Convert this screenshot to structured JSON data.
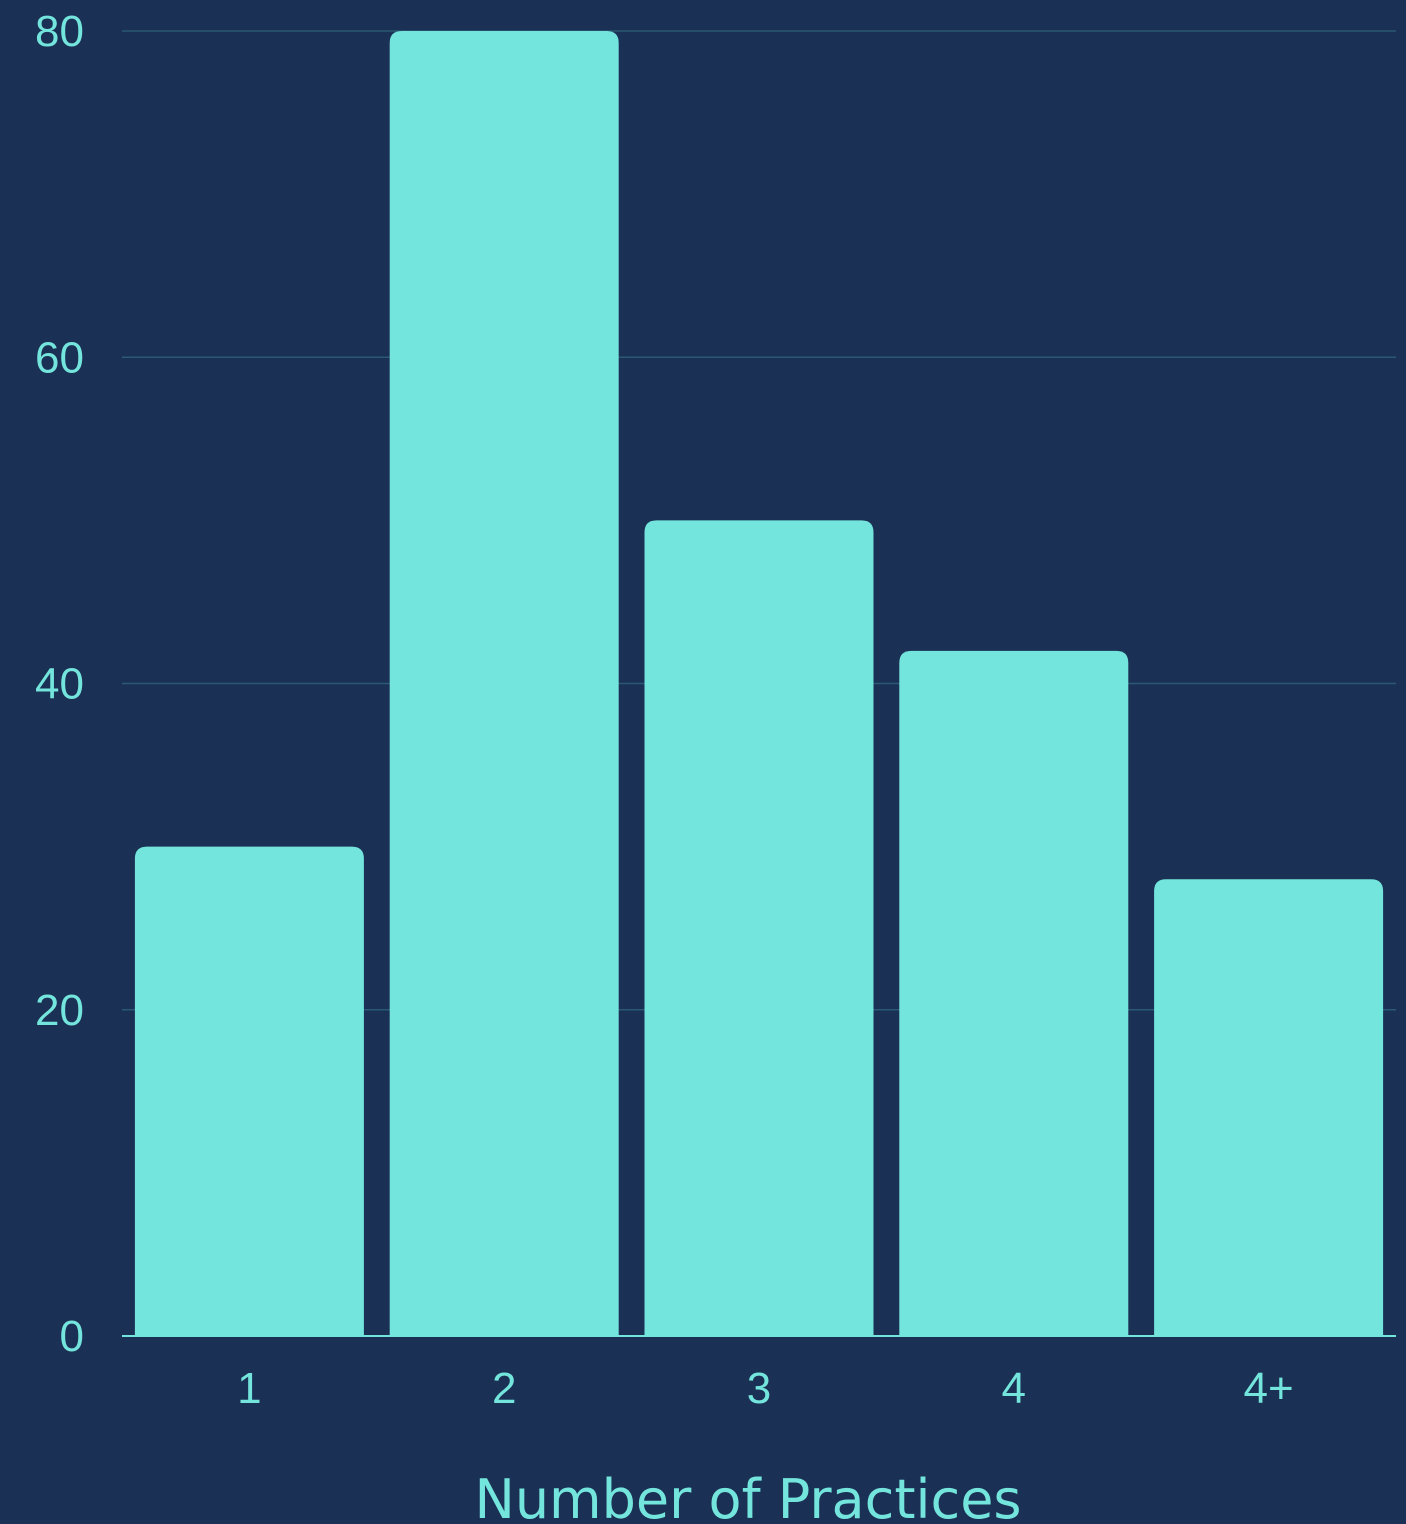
{
  "colors": {
    "background": "#1a3055",
    "bar": "#74e5dc",
    "text": "#74e5dc",
    "grid": "#2b5872"
  },
  "chart_data": {
    "type": "bar",
    "categories": [
      "1",
      "2",
      "3",
      "4",
      "4+"
    ],
    "values": [
      30,
      80,
      50,
      42,
      28
    ],
    "xlabel": "Number of Practices",
    "ylabel": "",
    "ylim": [
      0,
      80
    ],
    "yticks": [
      0,
      20,
      40,
      60,
      80
    ],
    "grid": true,
    "legend": "none"
  }
}
